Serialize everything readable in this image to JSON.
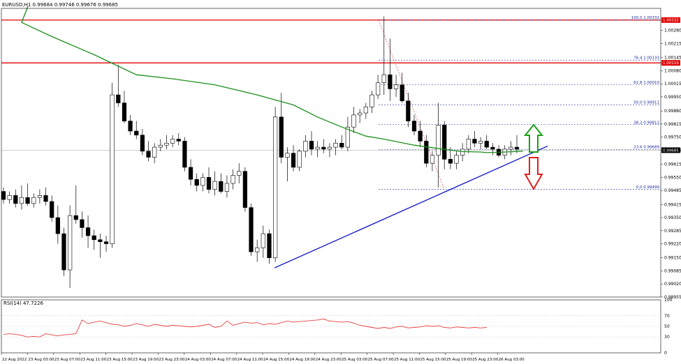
{
  "chart_data": {
    "type": "candlestick",
    "symbol_info": "EURUSD,H1  0.99684 0.99746 0.99676 0.99685",
    "y_range": [
      0.98955,
      1.0039
    ],
    "yticks": [
      "1.00280",
      "1.00215",
      "1.00145",
      "1.00080",
      "1.00015",
      "0.99950",
      "0.99880",
      "0.99815",
      "0.99750",
      "0.99685",
      "0.99615",
      "0.99550",
      "0.99485",
      "0.99415",
      "0.99350",
      "0.99285",
      "0.99220",
      "0.99150",
      "0.99085",
      "0.99020",
      "0.98955"
    ],
    "xticks": [
      "22 Aug 2022",
      "23 Aug 03:00",
      "23 Aug 07:00",
      "23 Aug 11:00",
      "23 Aug 15:00",
      "23 Aug 19:00",
      "23 Aug 23:00",
      "24 Aug 03:00",
      "24 Aug 07:00",
      "24 Aug 11:00",
      "24 Aug 15:00",
      "24 Aug 19:00",
      "24 Aug 23:00",
      "25 Aug 03:00",
      "25 Aug 07:00",
      "25 Aug 11:00",
      "25 Aug 15:00",
      "25 Aug 19:00",
      "25 Aug 23:00",
      "26 Aug 03:00"
    ],
    "candles": [
      [
        0.9948,
        0.995,
        0.9942,
        0.9944
      ],
      [
        0.9944,
        0.9948,
        0.9942,
        0.9946
      ],
      [
        0.9946,
        0.9949,
        0.994,
        0.9942
      ],
      [
        0.9942,
        0.9951,
        0.9939,
        0.9945
      ],
      [
        0.9945,
        0.9952,
        0.9941,
        0.9942
      ],
      [
        0.9942,
        0.9947,
        0.994,
        0.9945
      ],
      [
        0.9945,
        0.9949,
        0.9942,
        0.9946
      ],
      [
        0.9946,
        0.995,
        0.9941,
        0.9943
      ],
      [
        0.9943,
        0.9946,
        0.9933,
        0.9935
      ],
      [
        0.9935,
        0.9941,
        0.9922,
        0.9927
      ],
      [
        0.9927,
        0.993,
        0.9906,
        0.9909
      ],
      [
        0.9909,
        0.9941,
        0.99,
        0.9936
      ],
      [
        0.9936,
        0.9951,
        0.9932,
        0.9934
      ],
      [
        0.9934,
        0.9938,
        0.9925,
        0.993
      ],
      [
        0.993,
        0.9936,
        0.992,
        0.9926
      ],
      [
        0.9926,
        0.9929,
        0.9919,
        0.9924
      ],
      [
        0.9924,
        0.9927,
        0.9915,
        0.9923
      ],
      [
        0.9923,
        0.9926,
        0.9918,
        0.9922
      ],
      [
        0.9922,
        1.0002,
        0.992,
        0.9996
      ],
      [
        0.9996,
        1.0011,
        0.999,
        0.9992
      ],
      [
        0.9992,
        0.9998,
        0.9982,
        0.9983
      ],
      [
        0.9983,
        0.9986,
        0.9976,
        0.9978
      ],
      [
        0.9978,
        0.9983,
        0.9974,
        0.9976
      ],
      [
        0.9976,
        0.9979,
        0.9966,
        0.9968
      ],
      [
        0.9968,
        0.9973,
        0.9963,
        0.9965
      ],
      [
        0.9965,
        0.9972,
        0.9962,
        0.997
      ],
      [
        0.997,
        0.9974,
        0.9968,
        0.9971
      ],
      [
        0.9971,
        0.9976,
        0.9969,
        0.9972
      ],
      [
        0.9972,
        0.9976,
        0.997,
        0.9974
      ],
      [
        0.9974,
        0.9977,
        0.9971,
        0.9973
      ],
      [
        0.9973,
        0.9975,
        0.9958,
        0.996
      ],
      [
        0.996,
        0.9964,
        0.9951,
        0.9954
      ],
      [
        0.9954,
        0.9957,
        0.9948,
        0.9951
      ],
      [
        0.9951,
        0.9957,
        0.9948,
        0.9955
      ],
      [
        0.9955,
        0.996,
        0.9947,
        0.9949
      ],
      [
        0.9949,
        0.9958,
        0.9946,
        0.9953
      ],
      [
        0.9953,
        0.9957,
        0.9947,
        0.9948
      ],
      [
        0.9948,
        0.9956,
        0.9945,
        0.9952
      ],
      [
        0.9952,
        0.9959,
        0.9949,
        0.9956
      ],
      [
        0.9956,
        0.9962,
        0.9952,
        0.9958
      ],
      [
        0.9958,
        0.996,
        0.9938,
        0.994
      ],
      [
        0.994,
        0.9942,
        0.9916,
        0.9918
      ],
      [
        0.9918,
        0.9924,
        0.9913,
        0.992
      ],
      [
        0.992,
        0.9931,
        0.9915,
        0.9927
      ],
      [
        0.9927,
        0.9929,
        0.9912,
        0.9915
      ],
      [
        0.9915,
        0.999,
        0.9913,
        0.9985
      ],
      [
        0.9985,
        0.9997,
        0.9962,
        0.9965
      ],
      [
        0.9965,
        0.997,
        0.9953,
        0.9967
      ],
      [
        0.9967,
        0.9971,
        0.9958,
        0.996
      ],
      [
        0.996,
        0.9969,
        0.9958,
        0.9968
      ],
      [
        0.9968,
        0.9976,
        0.9965,
        0.9973
      ],
      [
        0.9973,
        0.9978,
        0.9966,
        0.9969
      ],
      [
        0.9969,
        0.9973,
        0.9965,
        0.997
      ],
      [
        0.997,
        0.9974,
        0.9967,
        0.9969
      ],
      [
        0.9969,
        0.9972,
        0.9965,
        0.997
      ],
      [
        0.997,
        0.9974,
        0.9966,
        0.9972
      ],
      [
        0.9972,
        0.9976,
        0.9969,
        0.997
      ],
      [
        0.997,
        0.9985,
        0.9968,
        0.998
      ],
      [
        0.998,
        0.999,
        0.9977,
        0.9986
      ],
      [
        0.9986,
        0.9989,
        0.9982,
        0.9987
      ],
      [
        0.9987,
        0.9992,
        0.9984,
        0.999
      ],
      [
        0.999,
        0.9998,
        0.9987,
        0.9996
      ],
      [
        0.9996,
        1.0006,
        0.9994,
        1.0002
      ],
      [
        1.0002,
        1.0035,
        0.9996,
        1.0006
      ],
      [
        1.0006,
        1.0024,
        0.9993,
        0.9999
      ],
      [
        0.9999,
        1.0006,
        0.9995,
        1.0001
      ],
      [
        1.0001,
        1.0007,
        0.9992,
        0.9993
      ],
      [
        0.9993,
        0.9997,
        0.998,
        0.9983
      ],
      [
        0.9983,
        0.9986,
        0.9976,
        0.9978
      ],
      [
        0.9978,
        0.9983,
        0.997,
        0.9973
      ],
      [
        0.9973,
        0.9976,
        0.996,
        0.9962
      ],
      [
        0.9962,
        0.9968,
        0.9958,
        0.9966
      ],
      [
        0.9966,
        0.9992,
        0.995,
        0.9981
      ],
      [
        0.9981,
        0.9983,
        0.9959,
        0.9964
      ],
      [
        0.9964,
        0.997,
        0.9959,
        0.9962
      ],
      [
        0.9962,
        0.9968,
        0.9959,
        0.9966
      ],
      [
        0.9966,
        0.9972,
        0.9963,
        0.9969
      ],
      [
        0.9969,
        0.9976,
        0.9967,
        0.9974
      ],
      [
        0.9974,
        0.9978,
        0.997,
        0.9972
      ],
      [
        0.9972,
        0.9975,
        0.9969,
        0.9973
      ],
      [
        0.9973,
        0.9976,
        0.9969,
        0.997
      ],
      [
        0.997,
        0.9972,
        0.9966,
        0.9969
      ],
      [
        0.9969,
        0.9971,
        0.9965,
        0.9966
      ],
      [
        0.9966,
        0.9971,
        0.9964,
        0.9969
      ],
      [
        0.9969,
        0.9973,
        0.9966,
        0.997
      ],
      [
        0.997,
        0.9976,
        0.9967,
        0.9969
      ]
    ],
    "ma_points": [
      [
        0,
        1.004
      ],
      [
        3,
        1.0032
      ],
      [
        8,
        1.0025
      ],
      [
        15,
        1.0016
      ],
      [
        22,
        1.0006
      ],
      [
        28,
        1.0004
      ],
      [
        35,
        1.0001
      ],
      [
        42,
        0.9996
      ],
      [
        48,
        0.9991
      ],
      [
        52,
        0.9985
      ],
      [
        56,
        0.998
      ],
      [
        60,
        0.99755
      ],
      [
        63,
        0.9974
      ],
      [
        68,
        0.9971
      ],
      [
        74,
        0.99685
      ],
      [
        76,
        0.99678
      ],
      [
        79,
        0.99676
      ],
      [
        80,
        0.99673
      ],
      [
        83,
        0.99676
      ],
      [
        86,
        0.9968
      ]
    ],
    "trendline": [
      [
        0.991,
        0.99695
      ]
    ],
    "h_lines": [
      1.00332,
      1.00119
    ],
    "h_line_labels": [
      "1.00332",
      "1.00119"
    ],
    "current_price": "0.99685",
    "fib_levels": [
      {
        "label": "100.0 1.00332",
        "value": 1.00332
      },
      {
        "label": "76.4 1.00133",
        "value": 1.00133
      },
      {
        "label": "61.8 1.00010",
        "value": 1.0001
      },
      {
        "label": "50.0 0.99911",
        "value": 0.99911
      },
      {
        "label": "38.2 0.99812",
        "value": 0.99812
      },
      {
        "label": "23.6 0.99689",
        "value": 0.99689
      },
      {
        "label": "0.0 0.99490",
        "value": 0.9949
      }
    ],
    "rsi": {
      "label": "RSI(14) 47.7226",
      "yticks": [
        "100",
        "70",
        "50",
        "30",
        "0"
      ],
      "values": [
        35,
        36,
        35,
        33,
        30,
        31,
        30,
        36,
        34,
        32,
        34,
        35,
        36,
        62,
        55,
        58,
        60,
        57,
        54,
        53,
        50,
        52,
        55,
        53,
        50,
        54,
        52,
        50,
        52,
        51,
        50,
        49,
        50,
        52,
        54,
        48,
        50,
        60,
        52,
        55,
        58,
        56,
        57,
        53,
        55,
        54,
        57,
        60,
        58,
        59,
        60,
        61,
        62,
        64,
        60,
        59,
        58,
        59,
        56,
        52,
        50,
        48,
        46,
        48,
        46,
        49,
        50,
        47,
        48,
        49,
        51,
        50,
        51,
        48,
        47,
        49,
        48,
        47,
        48,
        47,
        48
      ]
    },
    "colors": {
      "bull_body": "#ffffff",
      "bear_body": "#000000",
      "ma": "#1a8f1a",
      "trend": "#1e22c8",
      "hline": "#e00000",
      "fib": "#1f2a9c",
      "rsi_line": "#e84040",
      "arrow_up": "#19a019",
      "arrow_down": "#e02020"
    }
  }
}
